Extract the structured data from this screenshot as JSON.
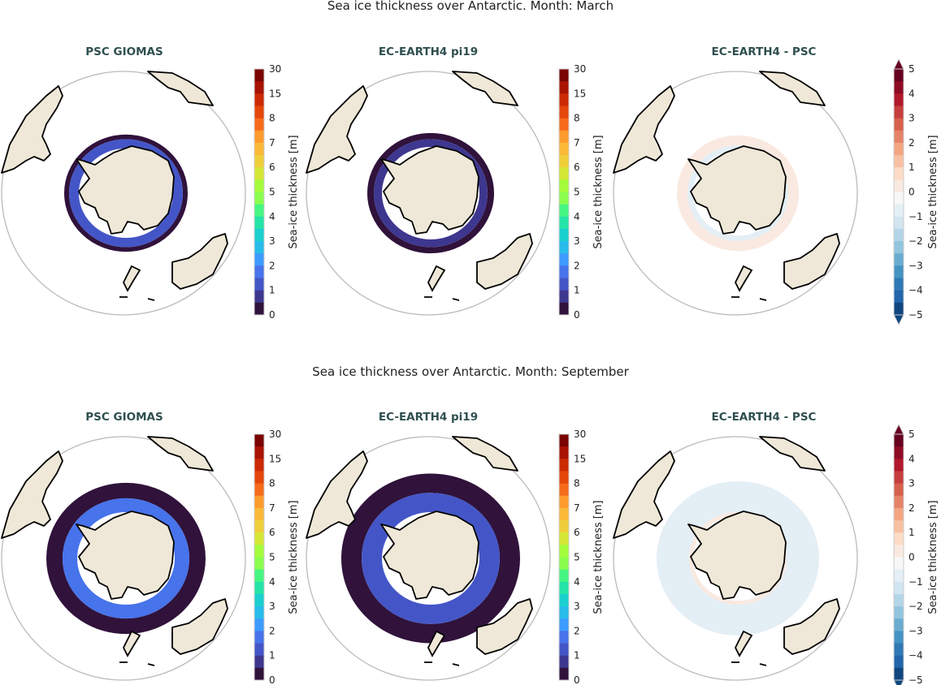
{
  "rows": [
    {
      "title": "Sea ice thickness over Antarctic. Month: March",
      "month": "March"
    },
    {
      "title": "Sea ice thickness over Antarctic. Month: September",
      "month": "September"
    }
  ],
  "panel_titles": [
    "PSC GIOMAS",
    "EC-EARTH4 pi19",
    "EC-EARTH4 -  PSC"
  ],
  "colorbar_seq": {
    "label": "Sea-ice thickness [m]",
    "ticks": [
      "0",
      "1",
      "2",
      "3",
      "4",
      "5",
      "6",
      "7",
      "8",
      "15",
      "30"
    ],
    "colors": [
      "#30123b",
      "#3e378f",
      "#4456c7",
      "#4773eb",
      "#3e9bfe",
      "#28bceb",
      "#1ad0cf",
      "#25e4a8",
      "#46f683",
      "#89fe4e",
      "#a4fc3c",
      "#d5e735",
      "#eecf3a",
      "#fbb938",
      "#fe9b2d",
      "#f66b19",
      "#e5460a",
      "#cb2a04",
      "#a81303",
      "#7a0403"
    ]
  },
  "colorbar_div": {
    "label": "Sea-ice thickness [m]",
    "ticks": [
      "5",
      "4",
      "3",
      "2",
      "1",
      "0",
      "−1",
      "−2",
      "−3",
      "−4",
      "−5"
    ],
    "extend": "both",
    "colors": [
      "#67001f",
      "#8e0b25",
      "#b2182b",
      "#c53e3d",
      "#d6604d",
      "#e58267",
      "#f4a582",
      "#f8c0a2",
      "#fddbc7",
      "#f9e9e0",
      "#f7f7f7",
      "#e4eef5",
      "#d1e5f0",
      "#b3d5e8",
      "#92c5de",
      "#6aacd0",
      "#4393c3",
      "#3079b6",
      "#2166ac",
      "#104680"
    ]
  },
  "colors": {
    "land": "#efe8d8",
    "coast": "#000000",
    "ice_low": "#30123b",
    "ice_mid": "#4773eb"
  }
}
